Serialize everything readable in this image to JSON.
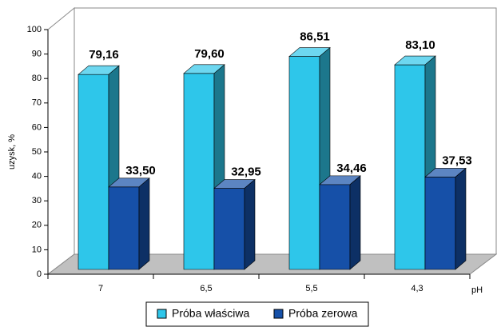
{
  "chart_data": {
    "type": "bar3d",
    "y_label": "uzysk, %",
    "x_label": "pH",
    "categories": [
      "7",
      "6,5",
      "5,5",
      "4,3"
    ],
    "series": [
      {
        "name": "Próba właściwa",
        "color": "#2ec6ea",
        "values": [
          79.16,
          79.6,
          86.51,
          83.1
        ],
        "value_labels": [
          "79,16",
          "79,60",
          "86,51",
          "83,10"
        ]
      },
      {
        "name": "Próba zerowa",
        "color": "#1650a8",
        "values": [
          33.5,
          32.95,
          34.46,
          37.53
        ],
        "value_labels": [
          "33,50",
          "32,95",
          "34,46",
          "37,53"
        ]
      }
    ],
    "ylim": [
      0,
      100
    ],
    "yticks": [
      0,
      10,
      20,
      30,
      40,
      50,
      60,
      70,
      80,
      90,
      100
    ]
  }
}
